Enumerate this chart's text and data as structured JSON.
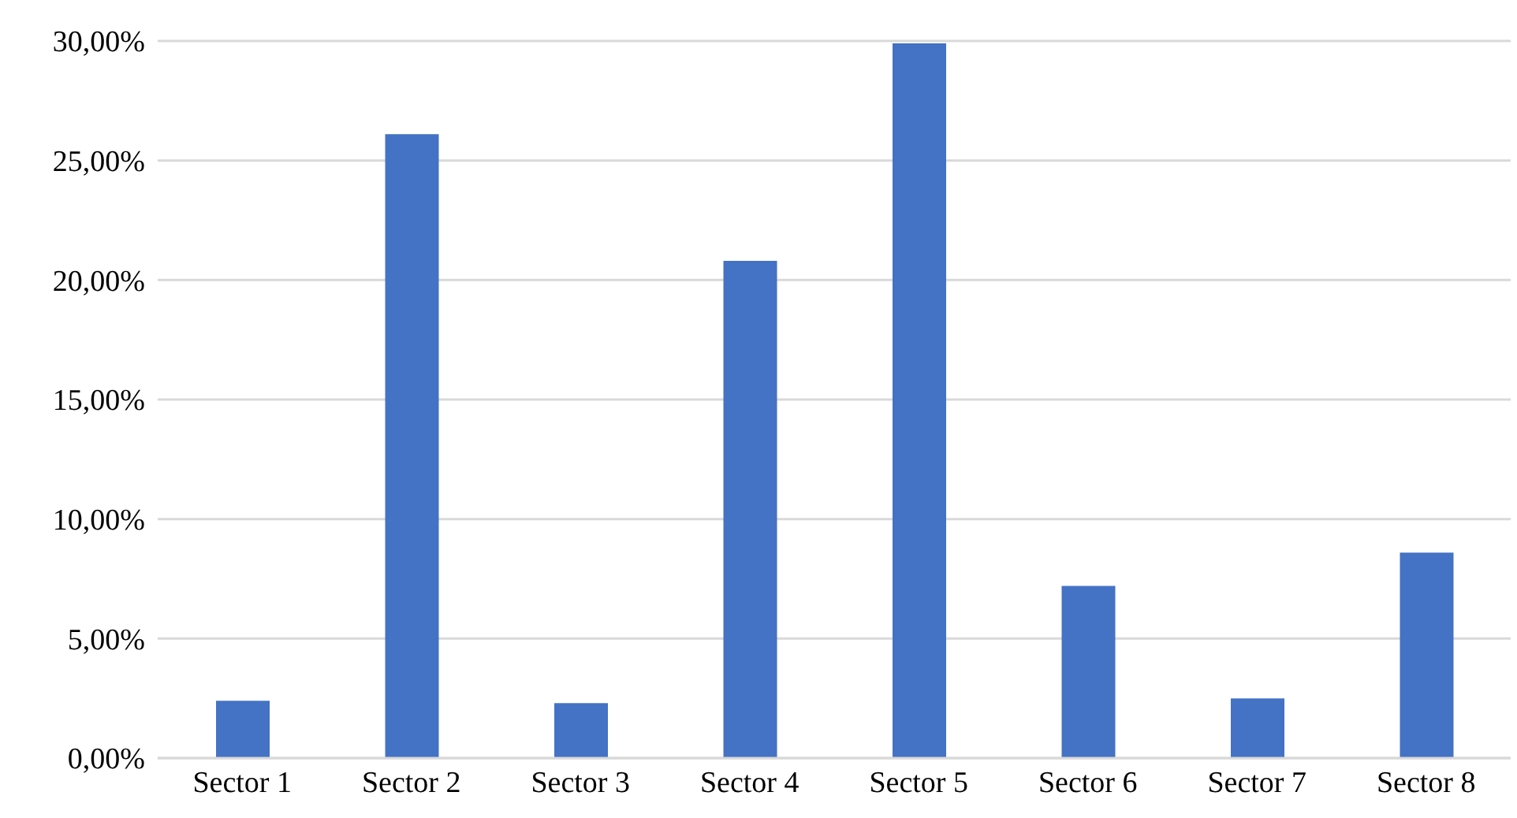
{
  "chart_data": {
    "type": "bar",
    "categories": [
      "Sector 1",
      "Sector 2",
      "Sector 3",
      "Sector 4",
      "Sector 5",
      "Sector 6",
      "Sector 7",
      "Sector 8"
    ],
    "values": [
      2.4,
      26.1,
      2.3,
      20.8,
      29.9,
      7.2,
      2.5,
      8.6
    ],
    "color": "#4472c4",
    "ylim": [
      0,
      30
    ],
    "yticks": [
      {
        "value": 0,
        "label": "0,00%"
      },
      {
        "value": 5,
        "label": "5,00%"
      },
      {
        "value": 10,
        "label": "10,00%"
      },
      {
        "value": 15,
        "label": "15,00%"
      },
      {
        "value": 20,
        "label": "20,00%"
      },
      {
        "value": 25,
        "label": "25,00%"
      },
      {
        "value": 30,
        "label": "30,00%"
      }
    ],
    "grid": "y"
  }
}
